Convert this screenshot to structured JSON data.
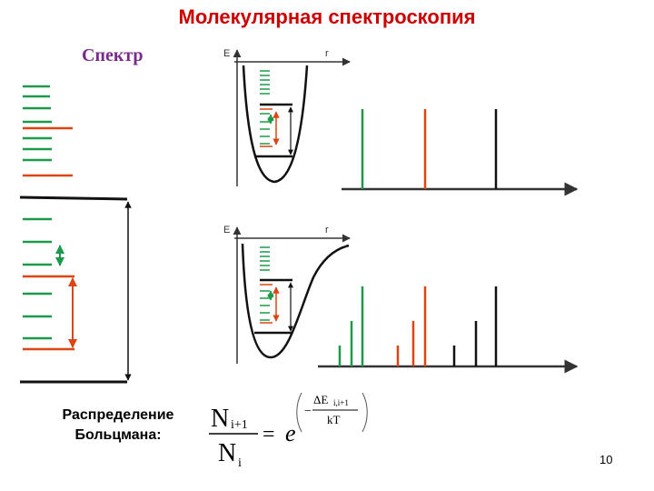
{
  "title": "Молекулярная спектроскопия",
  "spectrum_label": "Спектр",
  "boltzmann_label_line1": "Распределение",
  "boltzmann_label_line2": "Больцмана:",
  "formula": {
    "numerator": "N",
    "numerator_sub": "i+1",
    "denominator": "N",
    "denominator_sub": "i",
    "equals": "=",
    "base": "e",
    "exp_numerator": "ΔE",
    "exp_numerator_sub": "i,i+1",
    "exp_denominator": "kT",
    "exp_minus": "−"
  },
  "axes": {
    "energy_label": "E",
    "distance_label": "r"
  },
  "page_number": "10",
  "colors": {
    "green": "#1a9a4a",
    "red": "#dd4411",
    "black": "#111111",
    "title": "#cc0000",
    "spectrum_label": "#7a2a8a"
  }
}
